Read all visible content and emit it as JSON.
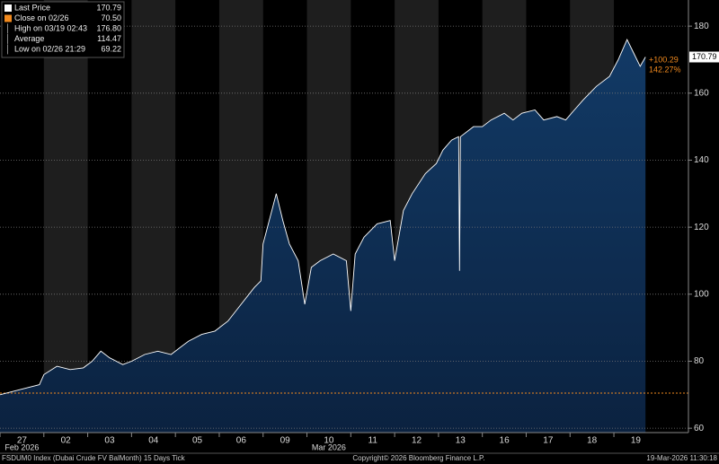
{
  "chart_data": {
    "type": "area",
    "legend": [
      {
        "label": "Last Price",
        "value": "170.79",
        "color": "#ffffff"
      },
      {
        "label": "Close on 02/26",
        "value": "70.50",
        "color": "#f28a1e"
      },
      {
        "label": "High on 03/19 02:43",
        "value": "176.80",
        "color": "#cccccc"
      },
      {
        "label": "Average",
        "value": "114.47",
        "color": "#cccccc"
      },
      {
        "label": "Low on 02/26 21:29",
        "value": "69.22",
        "color": "#cccccc"
      }
    ],
    "reference_line": {
      "value": 70.5,
      "color": "#f28a1e"
    },
    "annotations": [
      "+100.29",
      "142.27%"
    ],
    "x": [
      0,
      0.3,
      0.6,
      0.9,
      1.0,
      1.3,
      1.6,
      1.9,
      2.1,
      2.3,
      2.5,
      2.8,
      3.0,
      3.3,
      3.6,
      3.9,
      4.1,
      4.3,
      4.6,
      4.9,
      5.2,
      5.5,
      5.8,
      5.95,
      6.0,
      6.2,
      6.3,
      6.45,
      6.6,
      6.8,
      6.95,
      7.1,
      7.3,
      7.6,
      7.9,
      8.0,
      8.1,
      8.3,
      8.6,
      8.9,
      9.0,
      9.2,
      9.4,
      9.7,
      9.95,
      10.1,
      10.3,
      10.46,
      10.48,
      10.5,
      10.8,
      11.0,
      11.2,
      11.5,
      11.7,
      11.9,
      12.2,
      12.4,
      12.7,
      12.9,
      13.1,
      13.3,
      13.6,
      13.9,
      14.1,
      14.3,
      14.45,
      14.6,
      14.72
    ],
    "series": [
      {
        "name": "Last Price",
        "color": "#ffffff",
        "values": [
          70,
          71,
          72,
          73,
          76,
          78.5,
          77.5,
          78,
          80,
          83,
          81,
          79,
          80,
          82,
          83,
          82,
          84,
          86,
          88,
          89,
          92,
          97,
          102,
          104,
          115,
          125,
          130,
          122,
          115,
          110,
          97,
          108,
          110,
          112,
          110,
          95,
          112,
          117,
          121,
          122,
          110,
          125,
          130,
          136,
          139,
          143,
          146,
          147,
          107,
          147,
          150,
          150,
          152,
          154,
          152,
          154,
          155,
          152,
          153,
          152,
          155,
          158,
          162,
          165,
          170,
          176,
          172,
          168,
          170.79
        ]
      }
    ],
    "xlim": [
      0,
      15.7
    ],
    "xticks": [
      {
        "value": 0.5,
        "label": "27"
      },
      {
        "value": 1.5,
        "label": "02"
      },
      {
        "value": 2.5,
        "label": "03"
      },
      {
        "value": 3.5,
        "label": "04"
      },
      {
        "value": 4.5,
        "label": "05"
      },
      {
        "value": 5.5,
        "label": "06"
      },
      {
        "value": 6.5,
        "label": "09"
      },
      {
        "value": 7.5,
        "label": "10"
      },
      {
        "value": 8.5,
        "label": "11"
      },
      {
        "value": 9.5,
        "label": "12"
      },
      {
        "value": 10.5,
        "label": "13"
      },
      {
        "value": 11.5,
        "label": "16"
      },
      {
        "value": 12.5,
        "label": "17"
      },
      {
        "value": 13.5,
        "label": "18"
      },
      {
        "value": 14.5,
        "label": "19"
      }
    ],
    "x_group_labels": [
      {
        "value": 0.5,
        "label": "Feb 2026"
      },
      {
        "value": 7.5,
        "label": "Mar 2026"
      }
    ],
    "ylim": [
      58.7,
      187.8
    ],
    "yticks": [
      60,
      80,
      100,
      120,
      140,
      160,
      180
    ],
    "grid": true,
    "footer": [
      "FSDUM0 Index (Dubai Crude FV BalMonth) 15 Days Tick",
      "Copyright© 2026 Bloomberg Finance L.P.",
      "19-Mar-2026 11:30:18"
    ]
  }
}
